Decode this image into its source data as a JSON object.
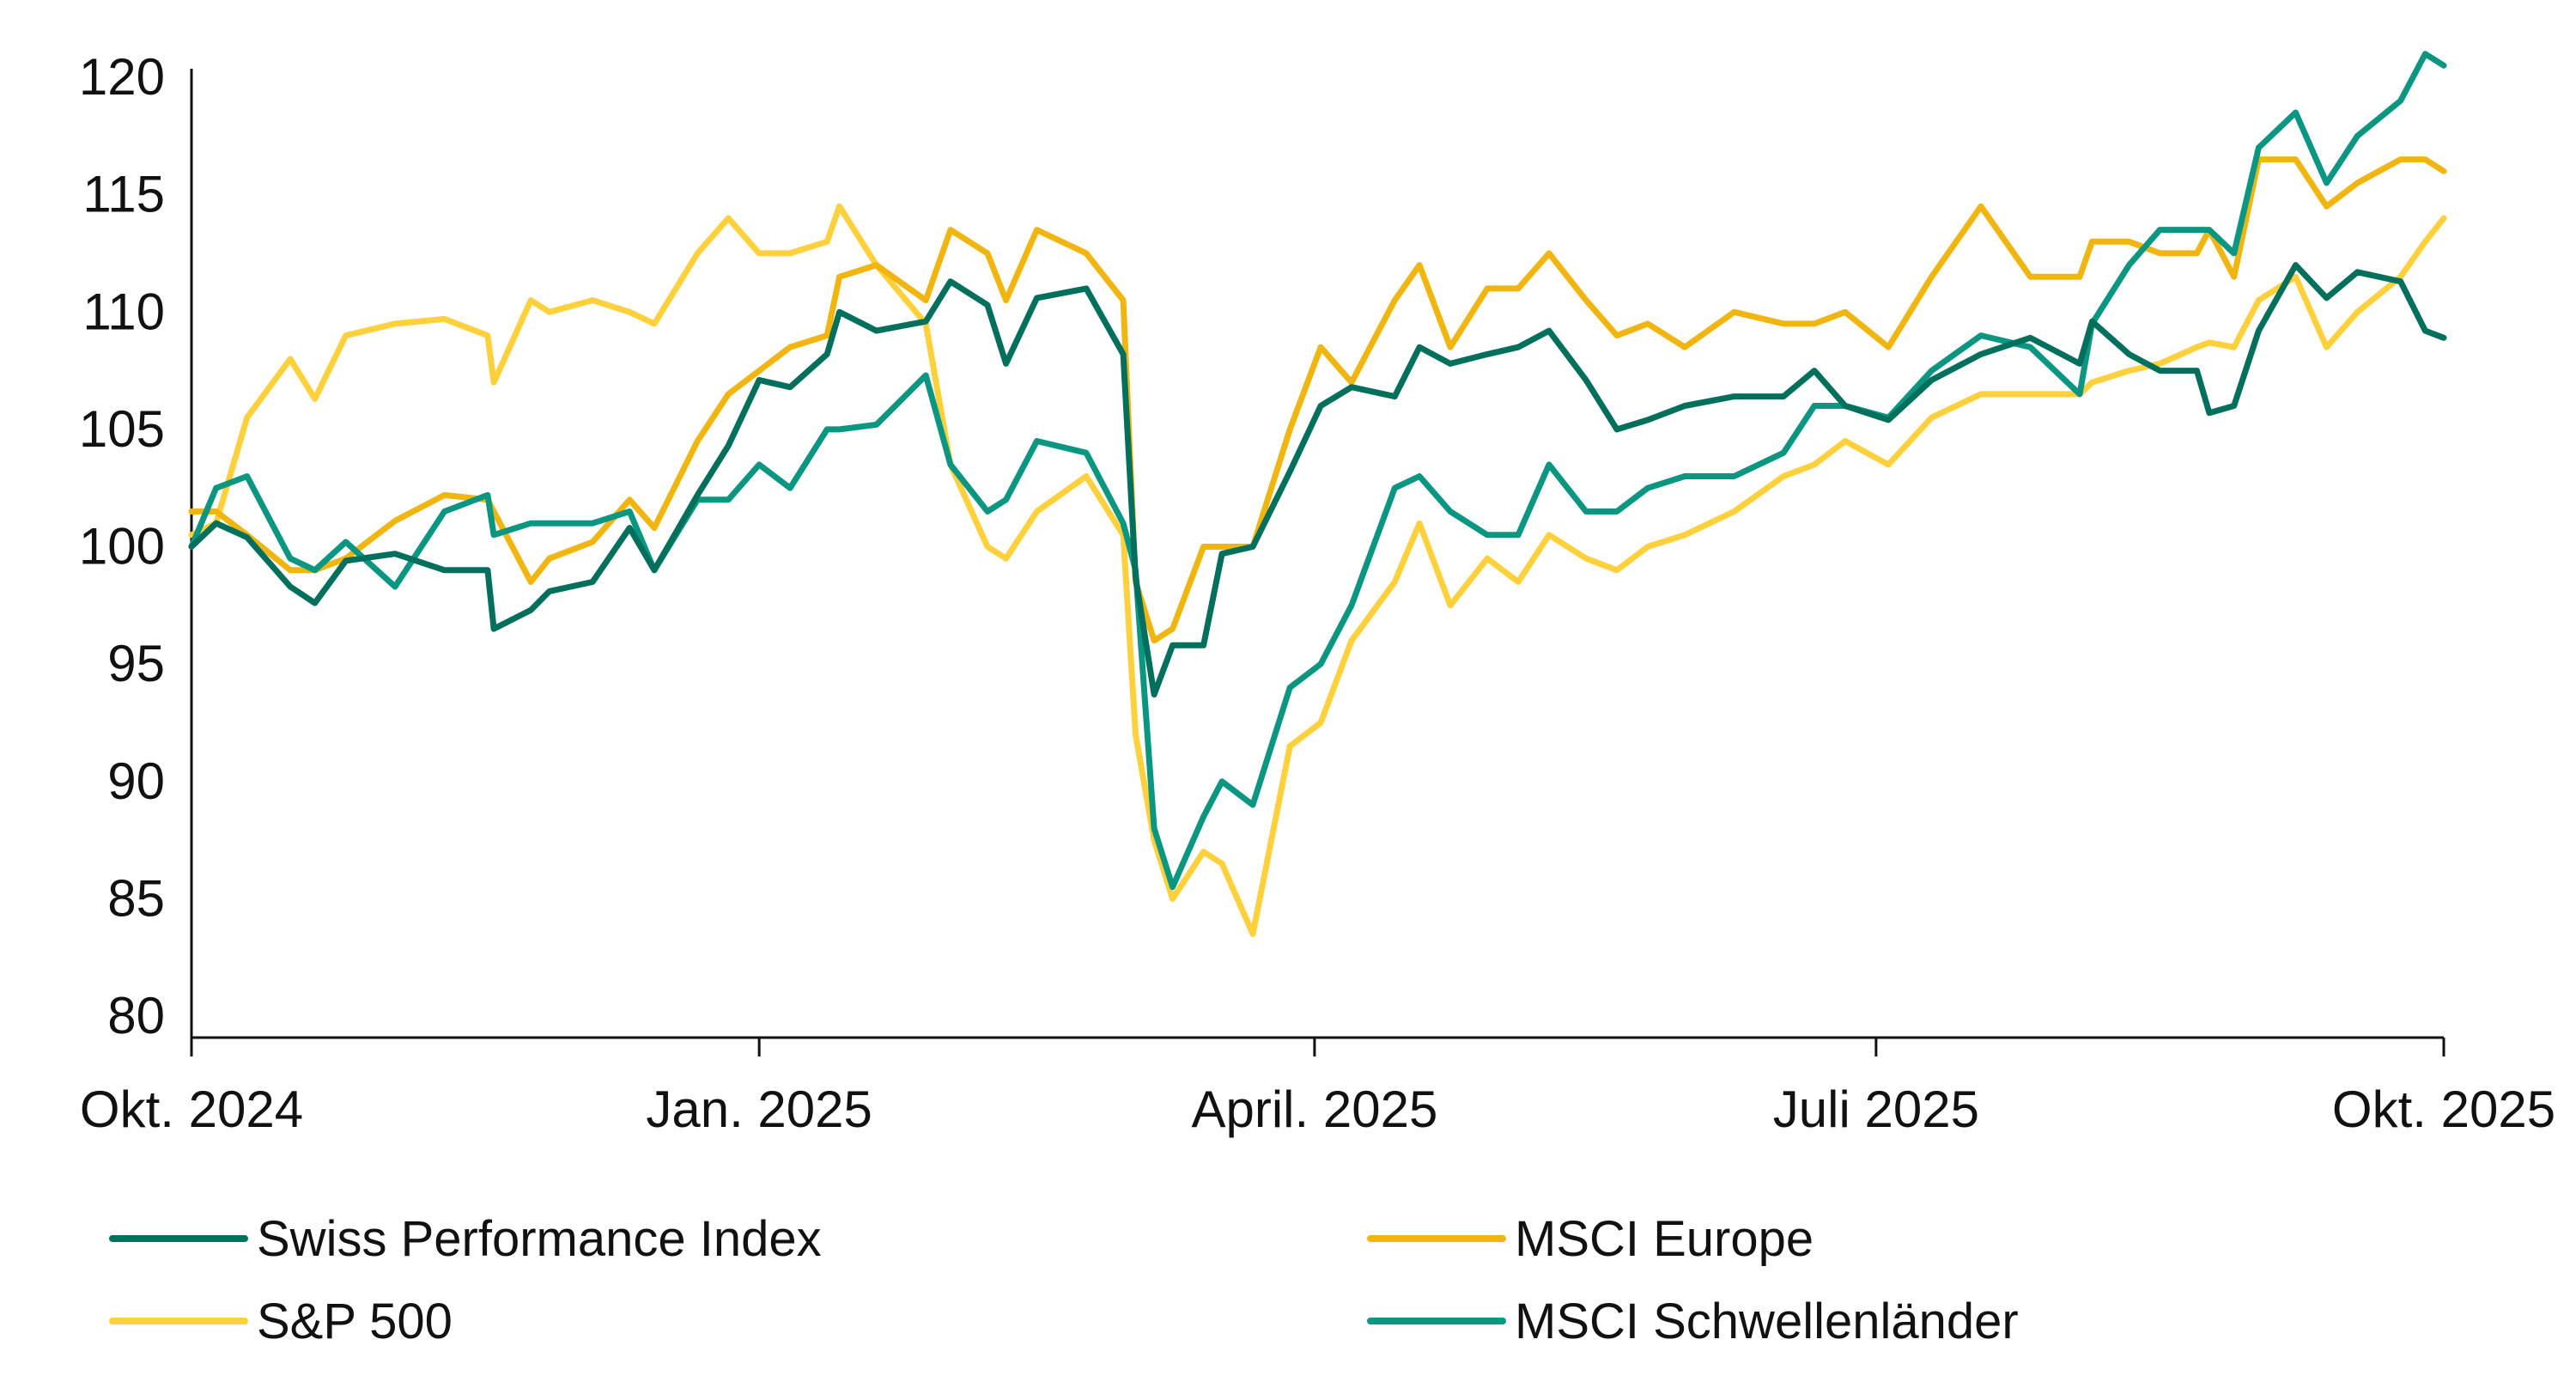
{
  "chart_data": {
    "type": "line",
    "title": "",
    "xlabel": "",
    "ylabel": "",
    "ylim": [
      80,
      120
    ],
    "xlim": [
      "2024-10-01",
      "2025-10-01"
    ],
    "yticks": [
      80,
      85,
      90,
      95,
      100,
      105,
      110,
      115,
      120
    ],
    "xticks": [
      {
        "date": "2024-10-01",
        "label": "Okt. 2024"
      },
      {
        "date": "2025-01-01",
        "label": "Jan. 2025"
      },
      {
        "date": "2025-04-01",
        "label": "April. 2025"
      },
      {
        "date": "2025-07-01",
        "label": "Juli 2025"
      },
      {
        "date": "2025-10-01",
        "label": "Okt. 2025"
      }
    ],
    "grid": false,
    "legend_position": "bottom",
    "x": [
      "2024-10-01",
      "2024-10-05",
      "2024-10-10",
      "2024-10-17",
      "2024-10-21",
      "2024-10-26",
      "2024-11-03",
      "2024-11-11",
      "2024-11-18",
      "2024-11-19",
      "2024-11-25",
      "2024-11-28",
      "2024-12-05",
      "2024-12-11",
      "2024-12-15",
      "2024-12-22",
      "2024-12-27",
      "2025-01-01",
      "2025-01-06",
      "2025-01-12",
      "2025-01-14",
      "2025-01-20",
      "2025-01-28",
      "2025-02-01",
      "2025-02-07",
      "2025-02-10",
      "2025-02-15",
      "2025-02-23",
      "2025-03-01",
      "2025-03-03",
      "2025-03-06",
      "2025-03-09",
      "2025-03-14",
      "2025-03-17",
      "2025-03-22",
      "2025-03-28",
      "2025-04-02",
      "2025-04-07",
      "2025-04-14",
      "2025-04-18",
      "2025-04-23",
      "2025-04-29",
      "2025-05-04",
      "2025-05-09",
      "2025-05-15",
      "2025-05-20",
      "2025-05-25",
      "2025-05-31",
      "2025-06-08",
      "2025-06-16",
      "2025-06-21",
      "2025-06-26",
      "2025-07-03",
      "2025-07-10",
      "2025-07-18",
      "2025-07-26",
      "2025-08-03",
      "2025-08-05",
      "2025-08-11",
      "2025-08-16",
      "2025-08-22",
      "2025-08-24",
      "2025-08-28",
      "2025-09-01",
      "2025-09-07",
      "2025-09-12",
      "2025-09-17",
      "2025-09-24",
      "2025-09-28",
      "2025-10-01"
    ],
    "series": [
      {
        "name": "Swiss Performance Index",
        "color": "#00705c",
        "values": [
          100,
          101,
          100.4,
          98.3,
          97.6,
          99.4,
          99.7,
          99,
          99,
          96.5,
          97.3,
          98.1,
          98.5,
          100.8,
          99,
          102.2,
          104.3,
          107.1,
          106.8,
          108.2,
          110,
          109.2,
          109.6,
          111.3,
          110.3,
          107.8,
          110.6,
          111,
          108.2,
          98.7,
          93.7,
          95.8,
          95.8,
          99.7,
          100,
          103.2,
          106,
          106.8,
          106.4,
          108.5,
          107.8,
          108.2,
          108.5,
          109.2,
          107.1,
          105,
          105.4,
          106,
          106.4,
          106.4,
          107.5,
          106,
          105.4,
          107.1,
          108.2,
          108.9,
          107.8,
          109.6,
          108.2,
          107.5,
          107.5,
          105.7,
          106,
          109.2,
          112,
          110.6,
          111.7,
          111.3,
          109.2,
          108.9
        ]
      },
      {
        "name": "MSCI Europe",
        "color": "#f0b50f",
        "values": [
          101.5,
          101.5,
          100.5,
          99,
          99,
          99.5,
          101.1,
          102.2,
          102,
          101.5,
          98.5,
          99.5,
          100.2,
          102,
          100.8,
          104.5,
          106.5,
          107.5,
          108.5,
          109,
          111.5,
          112,
          110.5,
          113.5,
          112.5,
          110.5,
          113.5,
          112.5,
          110.5,
          98.5,
          96,
          96.5,
          100,
          100,
          100,
          105,
          108.5,
          107,
          110.5,
          112,
          108.5,
          111,
          111,
          112.5,
          110.5,
          109,
          109.5,
          108.5,
          110,
          109.5,
          109.5,
          110,
          108.5,
          111.5,
          114.5,
          111.5,
          111.5,
          113,
          113,
          112.5,
          112.5,
          113.5,
          111.5,
          116.5,
          116.5,
          114.5,
          115.5,
          116.5,
          116.5,
          116
        ]
      },
      {
        "name": "S&P 500",
        "color": "#fdd03c",
        "values": [
          100.5,
          101,
          105.5,
          108,
          106.3,
          109,
          109.5,
          109.7,
          109,
          107,
          110.5,
          110,
          110.5,
          110,
          109.5,
          112.5,
          114,
          112.5,
          112.5,
          113,
          114.5,
          112,
          109.5,
          103.5,
          100,
          99.5,
          101.5,
          103,
          100.5,
          92,
          87.5,
          85,
          87,
          86.5,
          83.5,
          91.5,
          92.5,
          96,
          98.5,
          101,
          97.5,
          99.5,
          98.5,
          100.5,
          99.5,
          99,
          100,
          100.5,
          101.5,
          103,
          103.5,
          104.5,
          103.5,
          105.5,
          106.5,
          106.5,
          106.5,
          107,
          107.5,
          107.8,
          108.5,
          108.7,
          108.5,
          110.5,
          111.5,
          108.5,
          110,
          111.5,
          113,
          114
        ]
      },
      {
        "name": "MSCI Schwellenländer",
        "color": "#0b9682",
        "values": [
          100,
          102.5,
          103,
          99.5,
          99,
          100.2,
          98.3,
          101.5,
          102.2,
          100.5,
          101,
          101,
          101,
          101.5,
          99,
          102,
          102,
          103.5,
          102.5,
          105,
          105,
          105.2,
          107.3,
          103.5,
          101.5,
          102,
          104.5,
          104,
          101,
          99,
          88,
          85.5,
          88.5,
          90,
          89,
          94,
          95,
          97.5,
          102.5,
          103,
          101.5,
          100.5,
          100.5,
          103.5,
          101.5,
          101.5,
          102.5,
          103,
          103,
          104,
          106,
          106,
          105.5,
          107.5,
          109,
          108.5,
          106.5,
          109.5,
          112,
          113.5,
          113.5,
          113.5,
          112.5,
          117,
          118.5,
          115.5,
          117.5,
          119,
          121,
          120.5
        ]
      }
    ]
  }
}
